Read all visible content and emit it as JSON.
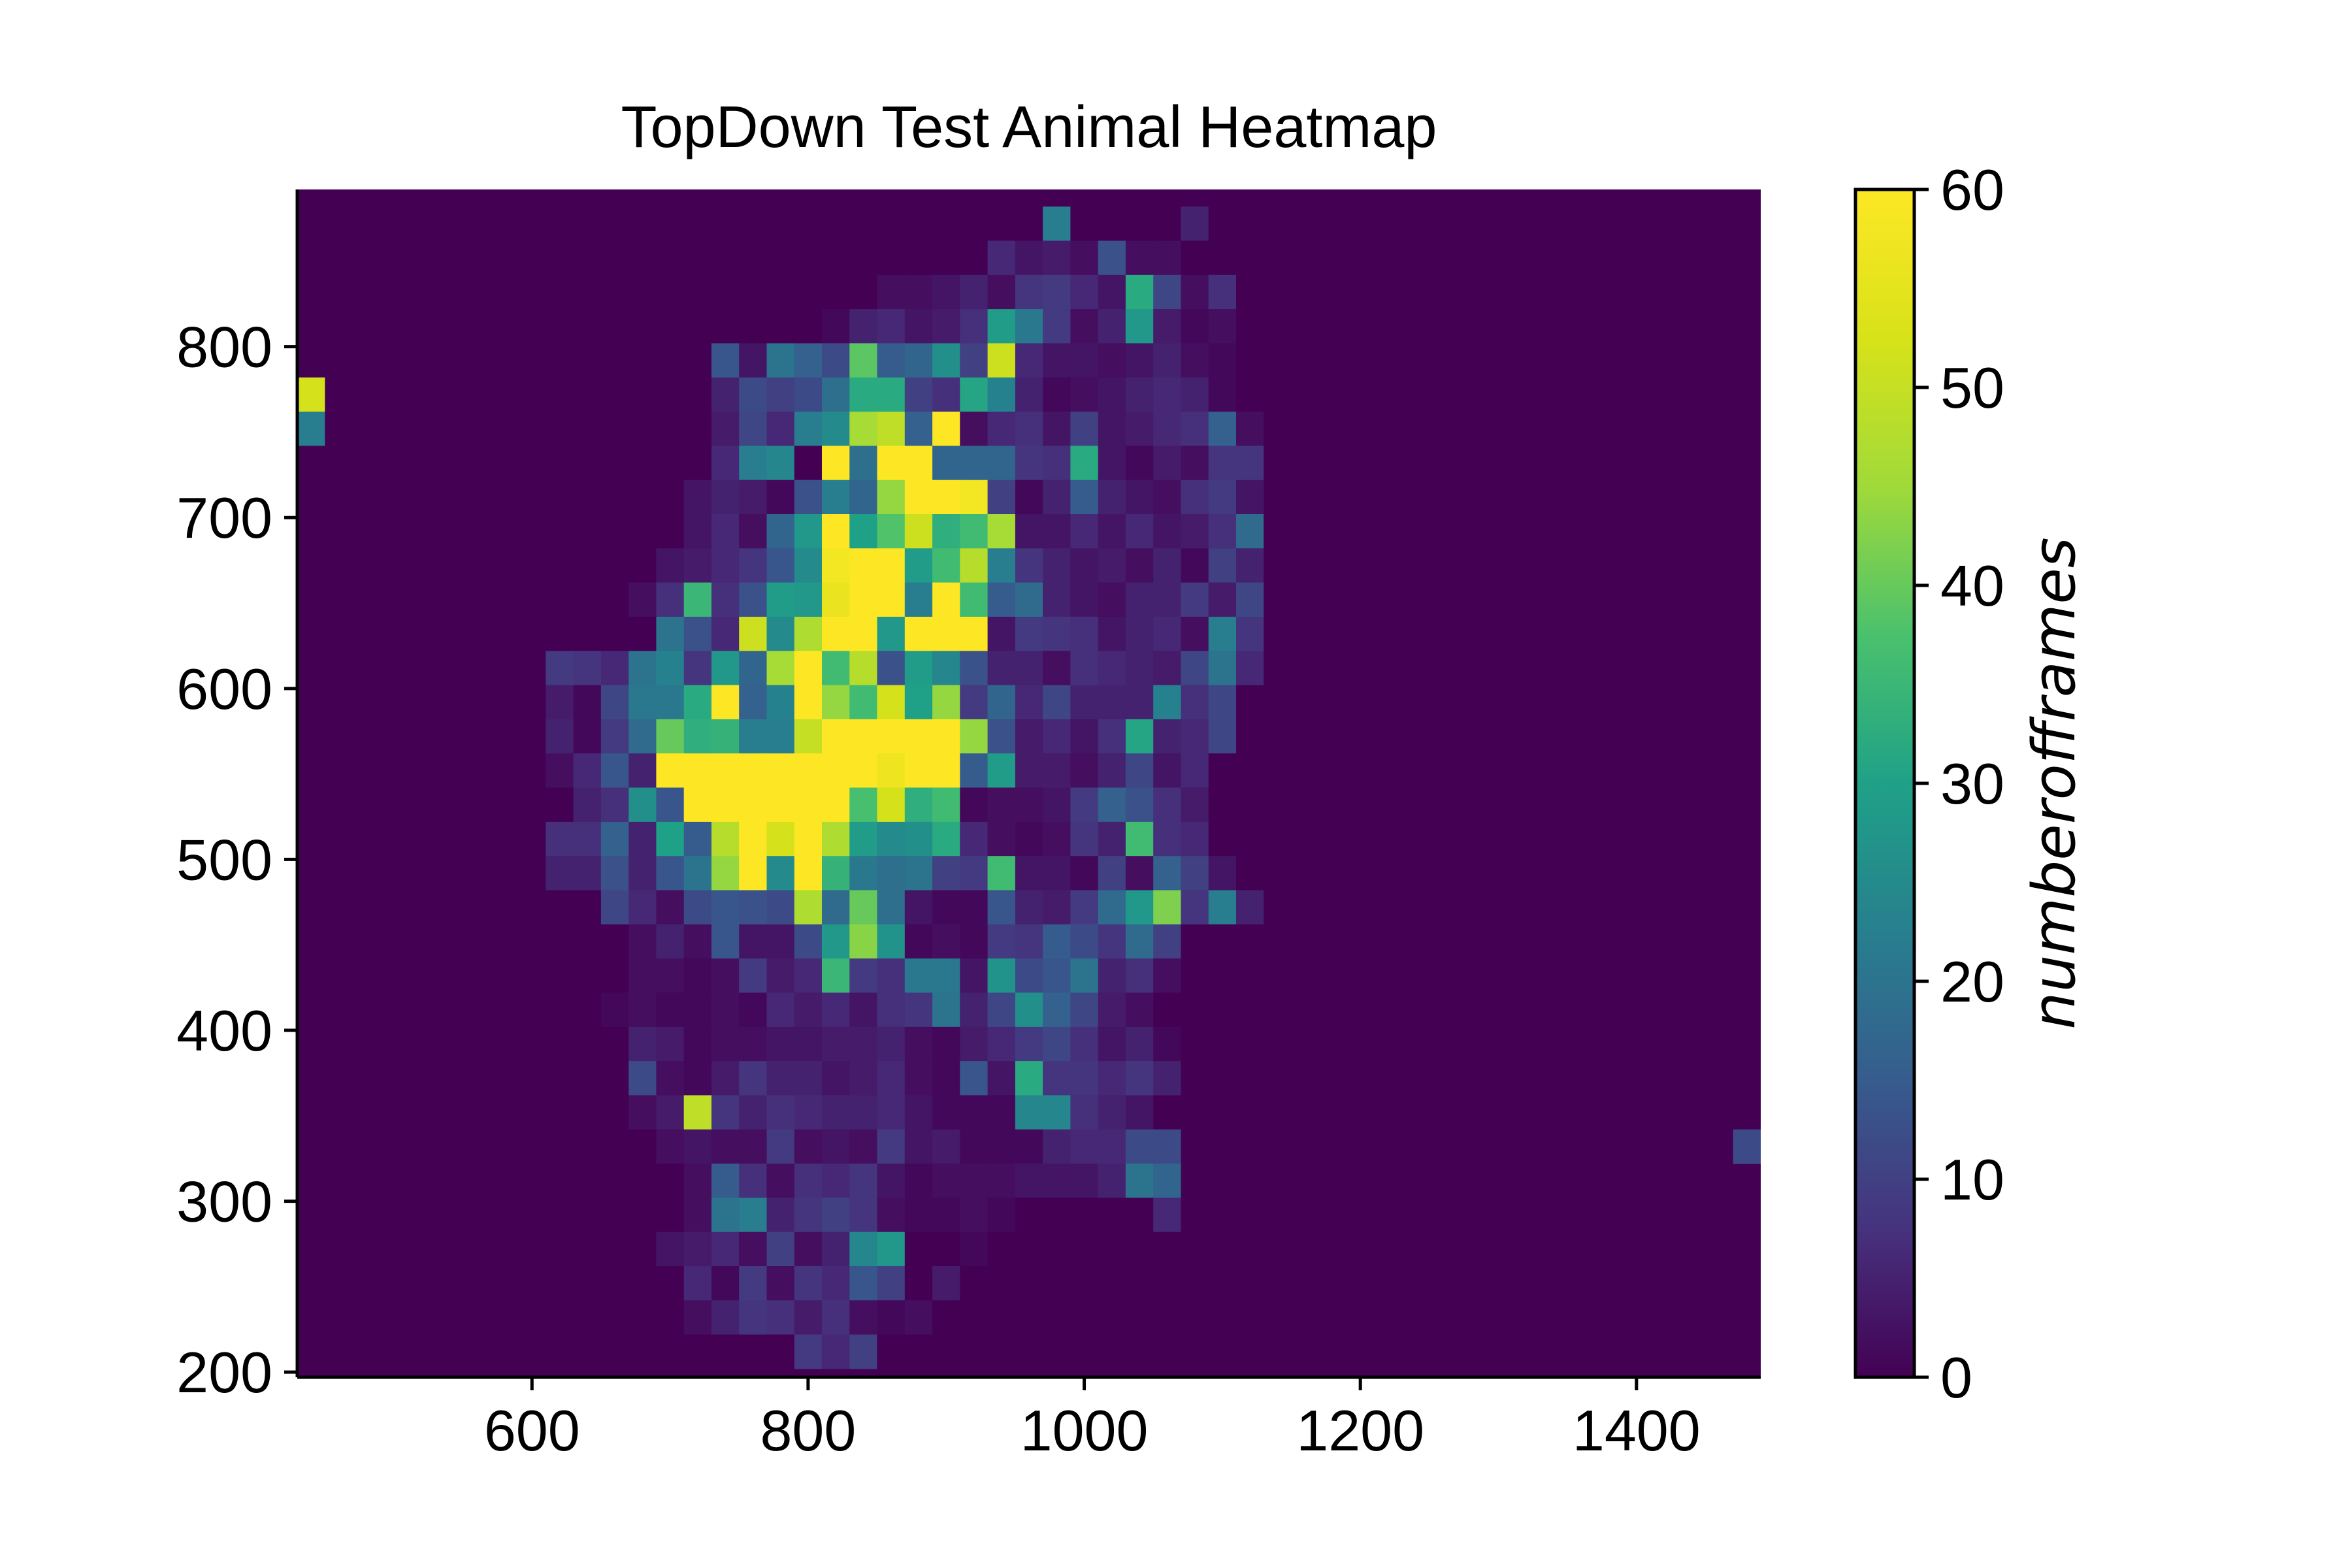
{
  "chart_data": {
    "type": "heatmap",
    "title": "TopDown Test Animal Heatmap",
    "xlabel": "",
    "ylabel": "",
    "xlim": [
      430,
      1490
    ],
    "ylim": [
      197,
      892
    ],
    "x_ticks": [
      "600",
      "800",
      "1000",
      "1200",
      "1400"
    ],
    "y_ticks": [
      "200",
      "300",
      "400",
      "500",
      "600",
      "700",
      "800"
    ],
    "colorbar": {
      "label": "numberofframes",
      "range": [
        0,
        60
      ],
      "ticks": [
        "0",
        "10",
        "20",
        "30",
        "40",
        "50",
        "60"
      ],
      "colormap": "viridis"
    },
    "grid": false,
    "bin_origin": {
      "x": 430,
      "y": 202
    },
    "bin_size": {
      "x": 20,
      "y": 20
    },
    "row_order": "top-to-bottom",
    "row_top_y": 882,
    "grid_rows": [
      "0,0,0,0,0,0,0,0,0,0,0,0,0,0,0,0,0,0,0,0,0,0,0,0,0,0,0,0,0,0,0,0,0,0,0,0,0,0,0,0,0,0,0,0,0,0,0,0,0,0,0,0,0,0",
      "0,0,0,0,0,0,0,0,0,0,0,0,0,0,0,0,0,0,0,0,0,0,0,0,0,0,0,22,0,0,0,0,5,0,0,0,0,0,0,0,0,0,0,0,0,0,0,0,0,0,0,0,0,0",
      "0,0,0,0,0,0,0,0,0,0,0,0,0,0,0,0,0,0,0,0,0,0,0,0,0,6,3,4,2,13,2,2,0,0,0,0,0,0,0,0,0,0,0,0,0,0,0,0,0,0,0,0,0,0",
      "0,0,0,0,0,0,0,0,0,0,0,0,0,0,0,0,0,0,0,0,0,2,2,3,5,2,8,9,6,3,32,11,2,7,0,0,0,0,0,0,0,0,0,0,0,0,0,0,0,0,0,0,0,0",
      "0,0,0,0,0,0,0,0,0,0,0,0,0,0,0,0,0,0,0,1,5,6,3,4,7,29,21,9,2,5,28,4,1,2,0,0,0,0,0,0,0,0,0,0,0,0,0,0,0,0,0,0,0,0",
      "0,0,0,0,0,0,0,0,0,0,0,0,0,0,0,14,3,20,16,12,39,15,17,26,10,51,6,3,3,2,3,5,2,1,0,0,0,0,0,0,0,0,0,0,0,0,0,0,0,0,0,0",
      "52,0,0,0,0,0,0,0,0,0,0,0,0,0,0,5,12,10,12,19,32,32,10,7,31,23,5,1,2,3,5,6,5,1,0,0,0,0,0,0,0,0,0,0,0,0,0,0,0,0,0,0",
      "22,0,0,0,0,0,0,0,0,0,0,0,0,0,0,4,11,6,22,25,46,49,16,60,2,6,7,3,10,3,4,6,7,16,2,0,0,0,0,0,0,0,0,0,0,0,0,0,0,0,0,0",
      "0,0,0,0,0,0,0,0,0,0,0,0,0,0,0,6,22,24,0,60,19,60,60,17,17,17,8,7,32,3,1,4,2,8,8,0,0,0,0,0,0,0,0,0,0,0,0,0,0,0,0,0",
      "0,0,0,0,0,0,0,0,0,0,0,0,0,0,3,5,4,1,13,22,17,44,60,60,58,10,1,5,15,5,3,2,7,9,3,0,0,0,0,0,0,0,0,0,0,0,0,0,0,0,0,0",
      "0,0,0,0,0,0,0,0,0,0,0,0,0,0,3,6,2,17,28,60,30,38,51,33,36,46,3,3,6,3,6,3,4,7,18,0,0,0,0,0,0,0,0,0,0,0,0,0,0,0,0,0",
      "0,0,0,0,0,0,0,0,0,0,0,0,0,3,4,6,8,14,25,58,60,60,29,36,48,22,8,5,3,4,2,5,1,10,5,0,0,0,0,0,0,0,0,0,0,0,0,0,0,0,0,0",
      "0,0,0,0,0,0,0,0,0,0,0,0,2,7,35,7,13,29,28,56,60,60,22,60,36,15,18,5,3,2,5,5,9,4,11,0,0,0,0,0,0,0,0,0,0,0,0,0,0,0,0,0",
      "0,0,0,0,0,0,0,0,0,0,0,0,0,20,13,6,51,25,47,60,60,28,60,60,60,3,9,8,7,3,5,6,2,22,8,0,0,0,0,0,0,0,0,0,0,0,0,0,0,0,0,0",
      "0,0,0,0,0,0,0,0,0,9,8,6,20,23,8,28,17,46,60,36,48,13,29,24,13,5,5,2,7,6,5,4,11,20,6,0,0,0,0,0,0,0,0,0,0,0,0,0,0,0,0,0",
      "0,0,0,0,0,0,0,0,0,4,1,11,21,21,32,60,16,23,60,44,36,52,30,44,9,17,6,11,5,5,5,23,7,11,0,0,0,0,0,0,0,0,0,0,0,0,0,0,0,0,0,0",
      "0,0,0,0,0,0,0,0,0,5,1,9,18,40,33,34,22,22,50,60,60,60,60,60,44,13,4,6,3,7,31,5,6,11,0,0,0,0,0,0,0,0,0,0,0,0,0,0,0,0,0,0",
      "0,0,0,0,0,0,0,0,0,2,6,14,5,60,60,60,60,60,60,60,60,57,60,60,15,29,4,4,2,5,11,3,6,0,0,0,0,0,0,0,0,0,0,0,0,0,0,0,0,0,0,0",
      "0,0,0,0,0,0,0,0,0,0,5,7,26,14,60,60,60,60,60,60,37,52,33,36,1,2,2,3,9,16,13,7,4,0,0,0,0,0,0,0,0,0,0,0,0,0,0,0,0,0,0,0",
      "0,0,0,0,0,0,0,0,0,7,7,16,5,30,15,48,60,52,60,47,29,25,26,32,6,2,1,2,8,5,36,7,6,0,0,0,0,0,0,0,0,0,0,0,0,0,0,0,0,0,0,0",
      "0,0,0,0,0,0,0,0,0,5,5,13,5,14,20,44,60,25,60,34,21,19,20,10,9,36,3,3,1,10,2,16,10,3,0,0,0,0,0,0,0,0,0,0,0,0,0,0,0,0,0,0",
      "0,0,0,0,0,0,0,0,0,0,0,11,6,2,12,14,13,12,47,18,40,19,3,1,1,14,5,4,9,18,28,42,8,22,5,0,0,0,0,0,0,0,0,0,0,0,0,0,0,0,0,0",
      "0,0,0,0,0,0,0,0,0,0,0,0,2,5,2,14,3,3,12,28,43,27,1,2,1,9,8,15,12,8,18,10,0,0,0,0,0,0,0,0,0,0,0,0,0,0,0,0,0,0,0,0",
      "0,0,0,0,0,0,0,0,0,0,0,0,2,2,1,2,9,4,6,35,9,7,21,21,3,27,12,14,20,5,7,2,0,0,0,0,0,0,0,0,0,0,0,0,0,0,0,0,0,0,0,0",
      "0,0,0,0,0,0,0,0,0,0,0,1,2,1,1,2,1,6,4,6,3,7,8,20,5,11,26,16,11,4,2,0,0,0,0,0,0,0,0,0,0,0,0,0,0,0,0,0,0,0,0,0",
      "0,0,0,0,0,0,0,0,0,0,0,0,5,4,1,2,2,3,3,4,4,5,2,1,4,6,9,11,7,3,5,1,0,0,0,0,0,0,0,0,0,0,0,0,0,0,0,0,0,0,0,0",
      "0,0,0,0,0,0,0,0,0,0,0,0,12,2,1,4,8,5,5,3,4,6,2,1,14,3,32,8,8,6,8,5,0,0,0,0,0,0,0,0,0,0,0,0,0,0,0,0,0,0,0,0",
      "0,0,0,0,0,0,0,0,0,0,0,0,2,4,49,8,5,7,6,5,5,6,3,1,1,1,24,24,7,5,3,0,0,0,0,0,0,0,0,0,0,0,0,0,0,0,0,0,0,0,0,0",
      "0,0,0,0,0,0,0,0,0,0,0,0,0,2,3,2,2,9,2,3,2,9,3,4,1,1,1,5,6,6,12,12,0,0,0,0,0,0,0,0,0,0,0,0,0,0,0,0,0,0,0,0,12",
      "0,0,0,0,0,0,0,0,0,0,0,0,0,0,2,15,7,2,7,6,8,3,1,2,2,2,3,3,3,5,20,17,0,0,0,0,0,0,0,0,0,0,0,0,0,0,0,0,0,0,0,0",
      "0,0,0,0,0,0,0,0,0,0,0,0,0,0,2,20,22,5,8,10,8,2,1,1,2,1,0,0,0,0,0,6,0,0,0,0,0,0,0,0,0,0,0,0,0,0,0,0,0,0,0,0",
      "0,0,0,0,0,0,0,0,0,0,0,0,0,3,4,6,2,10,2,5,24,28,0,0,1,0,0,0,0,0,0,0,0,0,0,0,0,0,0,0,0,0,0,0,0,0,0,0,0,0,0,0",
      "0,0,0,0,0,0,0,0,0,0,0,0,0,0,6,1,9,2,8,6,14,10,0,4,0,0,0,0,0,0,0,0,0,0,0,0,0,0,0,0,0,0,0,0,0,0,0,0,0,0,0,0",
      "0,0,0,0,0,0,0,0,0,0,0,0,0,0,2,5,8,7,4,7,2,1,2,0,0,0,0,0,0,0,0,0,0,0,0,0,0,0,0,0,0,0,0,0,0,0,0,0,0,0,0,0",
      "0,0,0,0,0,0,0,0,0,0,0,0,0,0,0,0,0,0,9,6,10,0,0,0,0,0,0,0,0,0,0,0,0,0,0,0,0,0,0,0,0,0,0,0,0,0,0,0,0,0,0,0"
    ]
  }
}
